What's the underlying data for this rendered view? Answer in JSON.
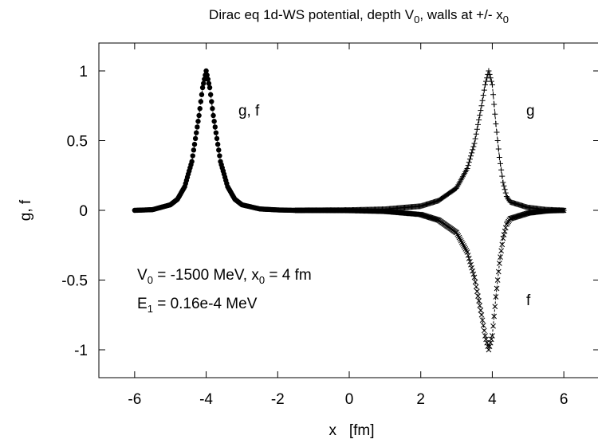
{
  "chart_data": {
    "type": "scatter",
    "title": {
      "prefix": "Dirac eq 1d-WS potential, depth V",
      "sub1": "0",
      "middle": ", walls at +/- x",
      "sub2": "0"
    },
    "xlabel": "x   [fm]",
    "ylabel": "g, f",
    "xlim": [
      -7,
      7
    ],
    "ylim": [
      -1.2,
      1.2
    ],
    "xticks": [
      {
        "v": -6,
        "label": "-6"
      },
      {
        "v": -4,
        "label": "-4"
      },
      {
        "v": -2,
        "label": "-2"
      },
      {
        "v": 0,
        "label": "0"
      },
      {
        "v": 2,
        "label": "2"
      },
      {
        "v": 4,
        "label": "4"
      },
      {
        "v": 6,
        "label": "6"
      }
    ],
    "yticks": [
      {
        "v": 1,
        "label": "1"
      },
      {
        "v": 0.5,
        "label": "0.5"
      },
      {
        "v": 0,
        "label": "0"
      },
      {
        "v": -0.5,
        "label": "-0.5"
      },
      {
        "v": -1,
        "label": "-1"
      }
    ],
    "grid": false,
    "series": [
      {
        "marker": "filled-circle",
        "curve": "left_peak",
        "note": "left peak: g and f coincide",
        "x": [
          -6.0,
          -5.5,
          -5.0,
          -4.8,
          -4.6,
          -4.4,
          -4.2,
          -4.1,
          -4.0,
          -3.9,
          -3.8,
          -3.6,
          -3.4,
          -3.2,
          -3.0,
          -2.5,
          -2.0,
          -1.5
        ],
        "y": [
          0.0,
          0.005,
          0.04,
          0.08,
          0.17,
          0.35,
          0.68,
          0.88,
          1.0,
          0.88,
          0.68,
          0.35,
          0.17,
          0.08,
          0.04,
          0.01,
          0.003,
          0.0
        ]
      },
      {
        "marker": "plus",
        "curve": "g_right",
        "note": "g near right wall",
        "x": [
          -1.5,
          0.0,
          1.0,
          2.0,
          2.5,
          3.0,
          3.3,
          3.5,
          3.7,
          3.8,
          3.9,
          4.0,
          4.1,
          4.2,
          4.3,
          4.4,
          4.5,
          5.0,
          5.5,
          6.0
        ],
        "y": [
          0.0,
          0.002,
          0.008,
          0.03,
          0.07,
          0.16,
          0.3,
          0.48,
          0.75,
          0.9,
          1.0,
          0.9,
          0.62,
          0.38,
          0.2,
          0.1,
          0.06,
          0.02,
          0.005,
          0.0
        ]
      },
      {
        "marker": "cross",
        "curve": "f_right",
        "note": "f near right wall",
        "x": [
          -1.5,
          0.0,
          1.0,
          2.0,
          2.5,
          3.0,
          3.3,
          3.5,
          3.7,
          3.8,
          3.9,
          4.0,
          4.1,
          4.2,
          4.3,
          4.4,
          4.5,
          5.0,
          5.5,
          6.0
        ],
        "y": [
          0.0,
          -0.002,
          -0.008,
          -0.03,
          -0.07,
          -0.16,
          -0.3,
          -0.48,
          -0.75,
          -0.9,
          -1.0,
          -0.9,
          -0.62,
          -0.38,
          -0.2,
          -0.1,
          -0.06,
          -0.02,
          -0.005,
          0.0
        ]
      }
    ],
    "annotations": [
      {
        "key": "gf_left",
        "x": -3.1,
        "y": 0.68,
        "text": "g, f"
      },
      {
        "key": "g_right",
        "x": 4.95,
        "y": 0.68,
        "text": "g"
      },
      {
        "key": "f_right",
        "x": 4.95,
        "y": -0.68,
        "text": "f"
      }
    ],
    "params": {
      "line1": {
        "a": "V",
        "a_sub": "0",
        "b": " = -1500 MeV, x",
        "b_sub": "0",
        "c": " = 4 fm"
      },
      "line2": {
        "a": "E",
        "a_sub": "1",
        "b": " = 0.16e-4 MeV"
      }
    }
  }
}
